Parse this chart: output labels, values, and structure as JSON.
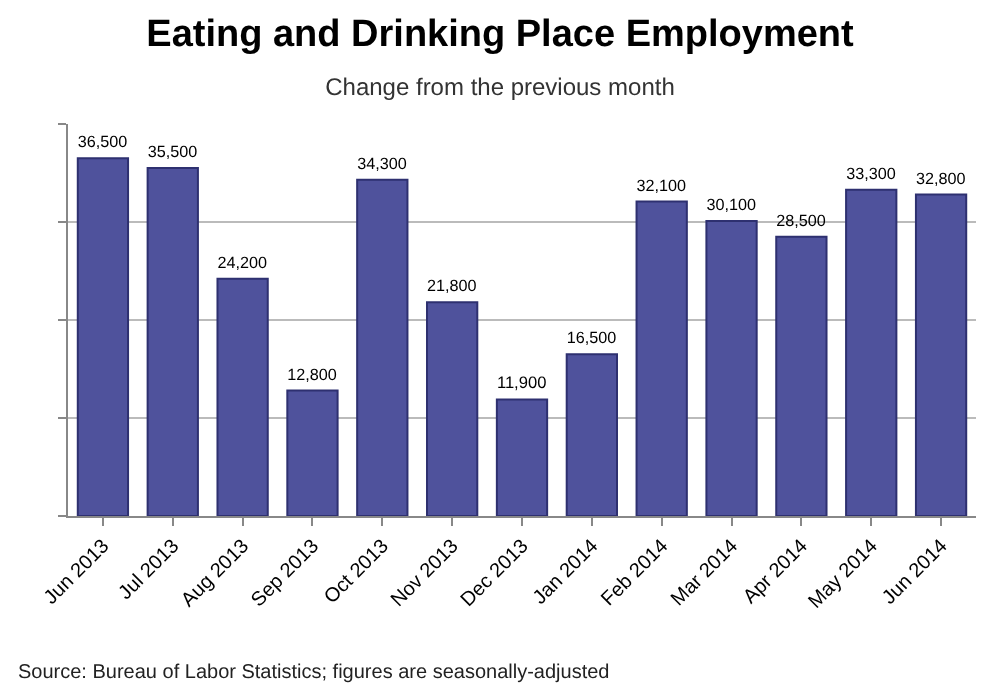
{
  "chart_data": {
    "type": "bar",
    "title": "Eating and Drinking Place Employment",
    "subtitle": "Change from the previous month",
    "categories": [
      "Jun 2013",
      "Jul 2013",
      "Aug 2013",
      "Sep 2013",
      "Oct 2013",
      "Nov 2013",
      "Dec 2013",
      "Jan 2014",
      "Feb 2014",
      "Mar 2014",
      "Apr 2014",
      "May 2014",
      "Jun 2014"
    ],
    "values": [
      36500,
      35500,
      24200,
      12800,
      34300,
      21800,
      11900,
      16500,
      32100,
      30100,
      28500,
      33300,
      32800
    ],
    "value_labels": [
      "36,500",
      "35,500",
      "24,200",
      "12,800",
      "34,300",
      "21,800",
      "11,900",
      "16,500",
      "32,100",
      "30,100",
      "28,500",
      "33,300",
      "32,800"
    ],
    "color": "#4f529c",
    "ylim": [
      0,
      40000
    ],
    "yticks": [
      {
        "value": 0,
        "label": null
      },
      {
        "value": 10000,
        "label": null
      },
      {
        "value": 20000,
        "label": null
      },
      {
        "value": 30000,
        "label": null
      },
      {
        "value": 40000,
        "label": null
      }
    ],
    "tick_labels": "x",
    "grid": "y",
    "annotations": [
      "Source: Bureau of Labor Statistics; figures are seasonally-adjusted"
    ]
  }
}
